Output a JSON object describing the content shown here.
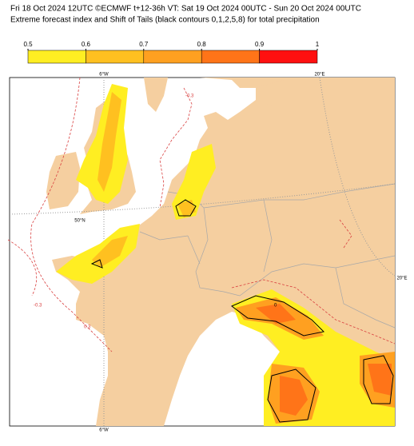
{
  "header": {
    "line1": "Fri 18 Oct 2024 12UTC ©ECMWF t+12-36h  VT: Sat 19 Oct 2024 00UTC - Sun 20 Oct 2024 00UTC",
    "line2": "Extreme forecast index and Shift of Tails (black contours 0,1,2,5,8) for total precipitation"
  },
  "colorbar": {
    "ticks": [
      {
        "value": 0.5,
        "label": "0.5"
      },
      {
        "value": 0.6,
        "label": "0.6"
      },
      {
        "value": 0.7,
        "label": "0.7"
      },
      {
        "value": 0.8,
        "label": "0.8"
      },
      {
        "value": 0.9,
        "label": "0.9"
      },
      1
    ],
    "colors": [
      "#ffee22",
      "#ffc020",
      "#ffa020",
      "#ff7418",
      "#ff1010"
    ]
  },
  "map": {
    "labels": {
      "top_west": "6°W",
      "top_east": "20°E",
      "lat": "50°N",
      "right_east": "20°E",
      "bottom_west": "6°W"
    },
    "contour_labels": [
      "-0.3",
      "0.3",
      "-0.3",
      "0"
    ]
  }
}
